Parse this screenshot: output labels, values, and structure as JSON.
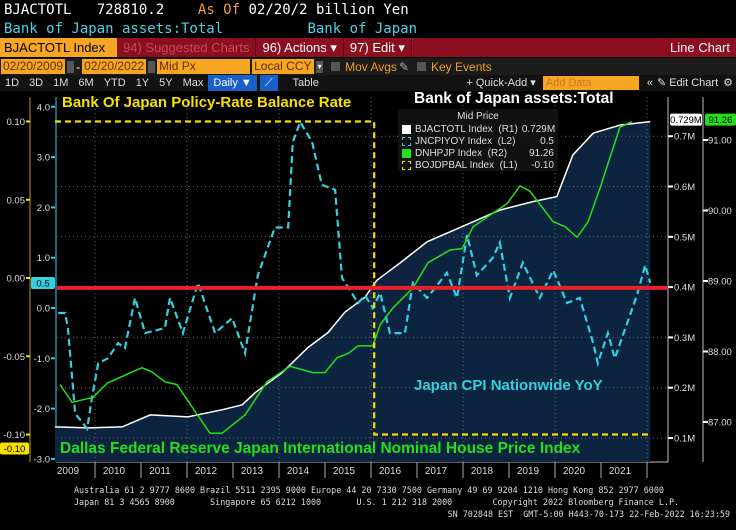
{
  "header": {
    "ticker": "BJACTOTL",
    "value": "728810.2",
    "asof_label": "As Of",
    "asof_date": "02/20/2",
    "unit": "billion Yen",
    "description": "Bank of Japan assets:Total",
    "source": "Bank of Japan"
  },
  "toolbar": {
    "security": "BJACTOTL Index",
    "suggested": "94) Suggested Charts",
    "actions": "96) Actions ▾",
    "edit": "97) Edit ▾",
    "chart_type": "Line Chart",
    "start_date": "02/20/2009",
    "end_date": "02/20/2022",
    "price_field": "Mid Px",
    "currency": "Local CCY",
    "mov_avgs": "Mov Avgs",
    "key_events": "Key Events",
    "periods": [
      "1D",
      "3D",
      "1M",
      "6M",
      "YTD",
      "1Y",
      "5Y",
      "Max"
    ],
    "frequency": "Daily ▼",
    "table": "Table",
    "quick_add": "+ Quick-Add ▾",
    "add_data_placeholder": "Add Data",
    "collapse": "«",
    "edit_chart": "✎ Edit Chart",
    "settings": "⚙"
  },
  "annotations": {
    "boj_rate": "Bank Of Japan Policy-Rate Balance Rate",
    "assets": "Bank of Japan assets:Total",
    "cpi": "Japan CPI Nationwide YoY",
    "house": "Dallas Federal Reserve Japan International Nominal House Price Index"
  },
  "legend": {
    "header": "Mid Price",
    "items": [
      {
        "label": "BJACTOTL Index  (R1)",
        "value": "0.729M",
        "color": "#ffffff"
      },
      {
        "label": "JNCPIYOY Index  (L2)",
        "value": "0.5",
        "color": "#33d0e0"
      },
      {
        "label": "DNHPJP Index  (R2)",
        "value": "91.26",
        "color": "#22e01a"
      },
      {
        "label": "BOJDPBAL Index  (L1)",
        "value": "-0.10",
        "color": "#f5e000"
      }
    ]
  },
  "footer": {
    "line1": "Australia 61 2 9777 8600 Brazil 5511 2395 9000 Europe 44 20 7330 7500 Germany 49 69 9204 1210 Hong Kong 852 2977 6000",
    "line2": "Japan 81 3 4565 8900       Singapore 65 6212 1000       U.S. 1 212 318 2000        Copyright 2022 Bloomberg Finance L.P.",
    "line3": "SN 702848 EST  GMT-5:00 H443-70-173 22-Feb-2022 16:23:59"
  },
  "chart_data": {
    "type": "line",
    "x_range": [
      2009.13,
      2022.14
    ],
    "x_ticks": [
      "2009",
      "2010",
      "2011",
      "2012",
      "2013",
      "2014",
      "2015",
      "2016",
      "2017",
      "2018",
      "2019",
      "2020",
      "2021"
    ],
    "axes": {
      "L1": {
        "ticks": [
          "-0.10",
          "-0.05",
          "0.00",
          "0.05",
          "0.10"
        ],
        "last": "-0.10"
      },
      "L2": {
        "ticks": [
          "-3.0",
          "-2.0",
          "-1.0",
          "0.0",
          "1.0",
          "2.0",
          "3.0",
          "4.0"
        ],
        "last": "0.5"
      },
      "R1": {
        "ticks": [
          "0.1M",
          "0.2M",
          "0.3M",
          "0.4M",
          "0.5M",
          "0.6M",
          "0.7M"
        ],
        "last": "0.729M"
      },
      "R2": {
        "ticks": [
          "87.00",
          "88.00",
          "89.00",
          "90.00",
          "91.00"
        ],
        "last": "91.26"
      }
    },
    "horizontal_marker_L2": 0.4,
    "series": [
      {
        "name": "BJACTOTL Index",
        "axis": "R1",
        "unit": "M",
        "color": "#ffffff",
        "fill": "#0d2440",
        "points": [
          [
            2009.13,
            0.122
          ],
          [
            2009.85,
            0.12
          ],
          [
            2010.59,
            0.122
          ],
          [
            2011.2,
            0.146
          ],
          [
            2012.02,
            0.142
          ],
          [
            2012.76,
            0.156
          ],
          [
            2013.2,
            0.166
          ],
          [
            2013.48,
            0.19
          ],
          [
            2014.07,
            0.23
          ],
          [
            2014.63,
            0.28
          ],
          [
            2015.07,
            0.31
          ],
          [
            2015.43,
            0.35
          ],
          [
            2015.87,
            0.38
          ],
          [
            2016.13,
            0.414
          ],
          [
            2016.63,
            0.448
          ],
          [
            2017.22,
            0.49
          ],
          [
            2018.15,
            0.527
          ],
          [
            2018.8,
            0.553
          ],
          [
            2019.52,
            0.57
          ],
          [
            2020.04,
            0.58
          ],
          [
            2020.39,
            0.663
          ],
          [
            2020.83,
            0.706
          ],
          [
            2021.41,
            0.722
          ],
          [
            2022.07,
            0.729
          ]
        ]
      },
      {
        "name": "JNCPIYOY Index",
        "axis": "L2",
        "color": "#33d0e0",
        "dashed": true,
        "points": [
          [
            2009.2,
            -0.1
          ],
          [
            2009.35,
            -0.1
          ],
          [
            2009.41,
            -0.4
          ],
          [
            2009.57,
            -2.1
          ],
          [
            2009.83,
            -2.4
          ],
          [
            2009.93,
            -1.8
          ],
          [
            2010.07,
            -1.1
          ],
          [
            2010.28,
            -1.0
          ],
          [
            2010.5,
            -0.7
          ],
          [
            2010.65,
            -0.8
          ],
          [
            2010.87,
            0.2
          ],
          [
            2011.09,
            -0.5
          ],
          [
            2011.52,
            -0.4
          ],
          [
            2011.63,
            0.2
          ],
          [
            2011.91,
            -0.5
          ],
          [
            2012.24,
            0.5
          ],
          [
            2012.61,
            -0.5
          ],
          [
            2012.98,
            -0.2
          ],
          [
            2013.26,
            -0.9
          ],
          [
            2013.54,
            0.65
          ],
          [
            2013.91,
            1.6
          ],
          [
            2014.2,
            1.6
          ],
          [
            2014.3,
            3.3
          ],
          [
            2014.46,
            3.7
          ],
          [
            2014.72,
            3.3
          ],
          [
            2014.93,
            2.45
          ],
          [
            2015.22,
            2.35
          ],
          [
            2015.37,
            0.6
          ],
          [
            2015.72,
            0.1
          ],
          [
            2015.87,
            0.25
          ],
          [
            2016.04,
            0.0
          ],
          [
            2016.2,
            0.3
          ],
          [
            2016.41,
            -0.5
          ],
          [
            2016.74,
            -0.5
          ],
          [
            2016.91,
            0.5
          ],
          [
            2017.22,
            0.2
          ],
          [
            2017.65,
            0.7
          ],
          [
            2017.87,
            0.2
          ],
          [
            2018.09,
            1.45
          ],
          [
            2018.3,
            0.65
          ],
          [
            2018.65,
            1.0
          ],
          [
            2018.8,
            1.3
          ],
          [
            2019.02,
            0.2
          ],
          [
            2019.3,
            0.9
          ],
          [
            2019.67,
            0.2
          ],
          [
            2019.96,
            0.75
          ],
          [
            2020.26,
            0.1
          ],
          [
            2020.54,
            0.2
          ],
          [
            2020.83,
            -0.7
          ],
          [
            2020.93,
            -1.1
          ],
          [
            2021.15,
            -0.5
          ],
          [
            2021.3,
            -1.0
          ],
          [
            2021.57,
            -0.3
          ],
          [
            2021.78,
            0.25
          ],
          [
            2021.96,
            0.85
          ],
          [
            2022.07,
            0.5
          ]
        ]
      },
      {
        "name": "DNHPJP Index",
        "axis": "R2",
        "color": "#22e01a",
        "points": [
          [
            2009.24,
            87.53
          ],
          [
            2009.5,
            87.28
          ],
          [
            2009.96,
            87.35
          ],
          [
            2010.26,
            87.55
          ],
          [
            2011.02,
            87.77
          ],
          [
            2011.24,
            87.71
          ],
          [
            2011.52,
            87.57
          ],
          [
            2011.78,
            87.53
          ],
          [
            2012.5,
            86.84
          ],
          [
            2012.76,
            86.84
          ],
          [
            2013.26,
            87.1
          ],
          [
            2013.74,
            87.57
          ],
          [
            2014.24,
            87.79
          ],
          [
            2014.74,
            87.7
          ],
          [
            2015.0,
            87.7
          ],
          [
            2015.26,
            87.91
          ],
          [
            2015.5,
            87.97
          ],
          [
            2015.72,
            88.08
          ],
          [
            2016.04,
            88.08
          ],
          [
            2016.2,
            88.38
          ],
          [
            2016.48,
            88.62
          ],
          [
            2016.91,
            88.9
          ],
          [
            2017.24,
            89.26
          ],
          [
            2017.72,
            89.44
          ],
          [
            2017.98,
            89.46
          ],
          [
            2018.22,
            89.77
          ],
          [
            2018.96,
            90.1
          ],
          [
            2019.24,
            90.35
          ],
          [
            2019.46,
            90.27
          ],
          [
            2019.96,
            89.84
          ],
          [
            2020.22,
            89.77
          ],
          [
            2020.48,
            89.62
          ],
          [
            2020.72,
            89.84
          ],
          [
            2020.98,
            90.32
          ],
          [
            2021.2,
            90.76
          ],
          [
            2021.41,
            91.18
          ],
          [
            2021.67,
            91.26
          ]
        ]
      },
      {
        "name": "BOJDPBAL Index",
        "axis": "L1",
        "color": "#f5e000",
        "dashed": true,
        "points": [
          [
            2009.13,
            0.1
          ],
          [
            2016.07,
            0.1
          ],
          [
            2016.07,
            -0.1
          ],
          [
            2022.07,
            -0.1
          ]
        ]
      }
    ]
  }
}
